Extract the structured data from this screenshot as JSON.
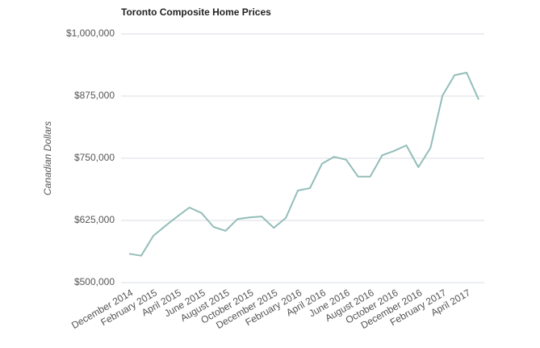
{
  "chart_data": {
    "type": "line",
    "title": "Toronto Composite Home Prices",
    "y_label": "Canadian Dollars",
    "categories": [
      "December 2014",
      null,
      "February 2015",
      null,
      "April 2015",
      null,
      "June 2015",
      null,
      "August 2015",
      null,
      "October 2015",
      null,
      "December 2015",
      null,
      "February 2016",
      null,
      "April 2016",
      null,
      "June 2016",
      null,
      "August 2016",
      null,
      "October 2016",
      null,
      "December 2016",
      null,
      "February 2017",
      null,
      "April 2017",
      null
    ],
    "values": [
      558000,
      554000,
      594000,
      614000,
      633000,
      651000,
      640000,
      612000,
      604000,
      628000,
      631000,
      633000,
      610000,
      630000,
      685000,
      690000,
      739000,
      753000,
      747000,
      713000,
      713000,
      756000,
      765000,
      776000,
      732000,
      771000,
      876000,
      917000,
      922000,
      868000
    ],
    "color": "#93bdb9",
    "ylim": [
      500000,
      1000000
    ],
    "yticks": [
      {
        "value": 500000,
        "label": "$500,000"
      },
      {
        "value": 625000,
        "label": "$625,000"
      },
      {
        "value": 750000,
        "label": "$750,000"
      },
      {
        "value": 875000,
        "label": "$875,000"
      },
      {
        "value": 1000000,
        "label": "$1,000,000"
      }
    ],
    "grid": true
  }
}
